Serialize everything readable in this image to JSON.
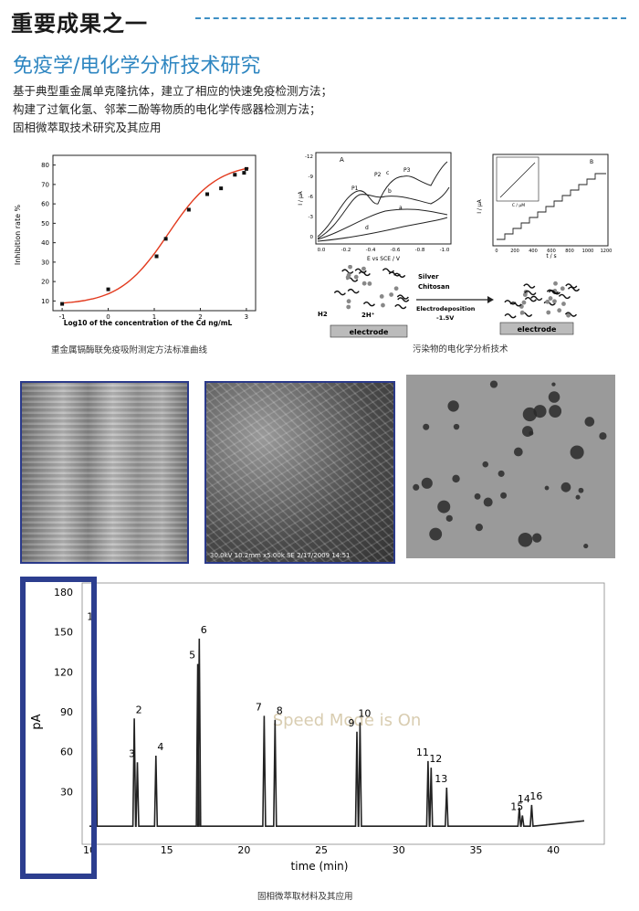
{
  "header": {
    "title": "重要成果之一"
  },
  "section": {
    "title": "免疫学/电化学分析技术研究",
    "lines": [
      "基于典型重金属单克隆抗体，建立了相应的快速免疫检测方法；",
      "构建了过氧化氢、邻苯二酚等物质的电化学传感器检测方法；",
      "固相微萃取技术研究及其应用"
    ]
  },
  "figures": {
    "inhibition": {
      "caption": "重金属镉酶联免疫吸附测定方法标准曲线",
      "chart_data": {
        "type": "scatter",
        "xlabel": "Log10 of the concentration of the Cd ng/mL",
        "ylabel": "Inhibition rate %",
        "xlim": [
          -1.2,
          3.2
        ],
        "ylim": [
          5,
          85
        ],
        "x_ticks": [
          "-1",
          "0",
          "1",
          "2",
          "3"
        ],
        "y_ticks": [
          "10",
          "20",
          "30",
          "40",
          "50",
          "60",
          "70",
          "80"
        ],
        "points": {
          "x": [
            -1.0,
            0.0,
            1.05,
            1.25,
            1.75,
            2.15,
            2.45,
            2.75,
            2.95,
            3.0
          ],
          "y": [
            8.5,
            16,
            33,
            42,
            57,
            65,
            68,
            75,
            76,
            78
          ]
        },
        "fit_line_color": "#e23a1e"
      }
    },
    "electrochem": {
      "caption": "污染物的电化学分析技术",
      "cv": {
        "panel": "A",
        "xlabel": "E vs SCE / V",
        "ylabel": "I / μA",
        "x_ticks": [
          "0.0",
          "-0.2",
          "-0.4",
          "-0.6",
          "-0.8",
          "-1.0"
        ],
        "y_ticks": [
          "-12",
          "-9",
          "-6",
          "-3",
          "0"
        ],
        "peaks": [
          "P1",
          "P2",
          "P3"
        ],
        "curves": [
          "a",
          "b",
          "c",
          "d"
        ]
      },
      "amperometric": {
        "panel": "B",
        "xlabel": "t / s",
        "ylabel": "I / μA",
        "x_ticks": [
          "0",
          "200",
          "400",
          "600",
          "800",
          "1000",
          "1200"
        ],
        "inset_xlabel": "C / μM"
      },
      "scheme": {
        "left_electrode": "electrode",
        "right_electrode": "electrode",
        "h2": "H2",
        "h_plus": "2H⁺",
        "silver": "Silver",
        "chitosan": "Chitosan",
        "process": "Electrodeposition",
        "potential": "-1.5V"
      }
    },
    "sem": {
      "middle_label": "30.0kV 10.2mm x5.00k SE 2/17/2009 14:51"
    },
    "chromatogram": {
      "caption": "固相微萃取材料及其应用",
      "watermark": "Speed Mode is On",
      "chart_data": {
        "type": "line",
        "xlabel": "time (min)",
        "ylabel": "pA",
        "xlim": [
          10,
          42
        ],
        "ylim": [
          0,
          180
        ],
        "x_ticks": [
          "10",
          "15",
          "20",
          "25",
          "30",
          "35",
          "40"
        ],
        "y_ticks": [
          "180",
          "150",
          "120",
          "90",
          "60",
          "30"
        ],
        "peaks": [
          {
            "label": "1",
            "time": 10.4,
            "height": 155
          },
          {
            "label": "2",
            "time": 12.9,
            "height": 85
          },
          {
            "label": "3",
            "time": 13.1,
            "height": 52
          },
          {
            "label": "4",
            "time": 14.3,
            "height": 57
          },
          {
            "label": "5",
            "time": 17.0,
            "height": 126
          },
          {
            "label": "6",
            "time": 17.1,
            "height": 145
          },
          {
            "label": "7",
            "time": 21.3,
            "height": 87
          },
          {
            "label": "8",
            "time": 22.0,
            "height": 84
          },
          {
            "label": "9",
            "time": 27.3,
            "height": 75
          },
          {
            "label": "10",
            "time": 27.5,
            "height": 82
          },
          {
            "label": "11",
            "time": 31.9,
            "height": 53
          },
          {
            "label": "12",
            "time": 32.1,
            "height": 48
          },
          {
            "label": "13",
            "time": 33.1,
            "height": 33
          },
          {
            "label": "14",
            "time": 37.8,
            "height": 18
          },
          {
            "label": "15",
            "time": 38.0,
            "height": 12
          },
          {
            "label": "16",
            "time": 38.6,
            "height": 20
          }
        ],
        "highlight_box_color": "#2c3e8f"
      }
    }
  }
}
